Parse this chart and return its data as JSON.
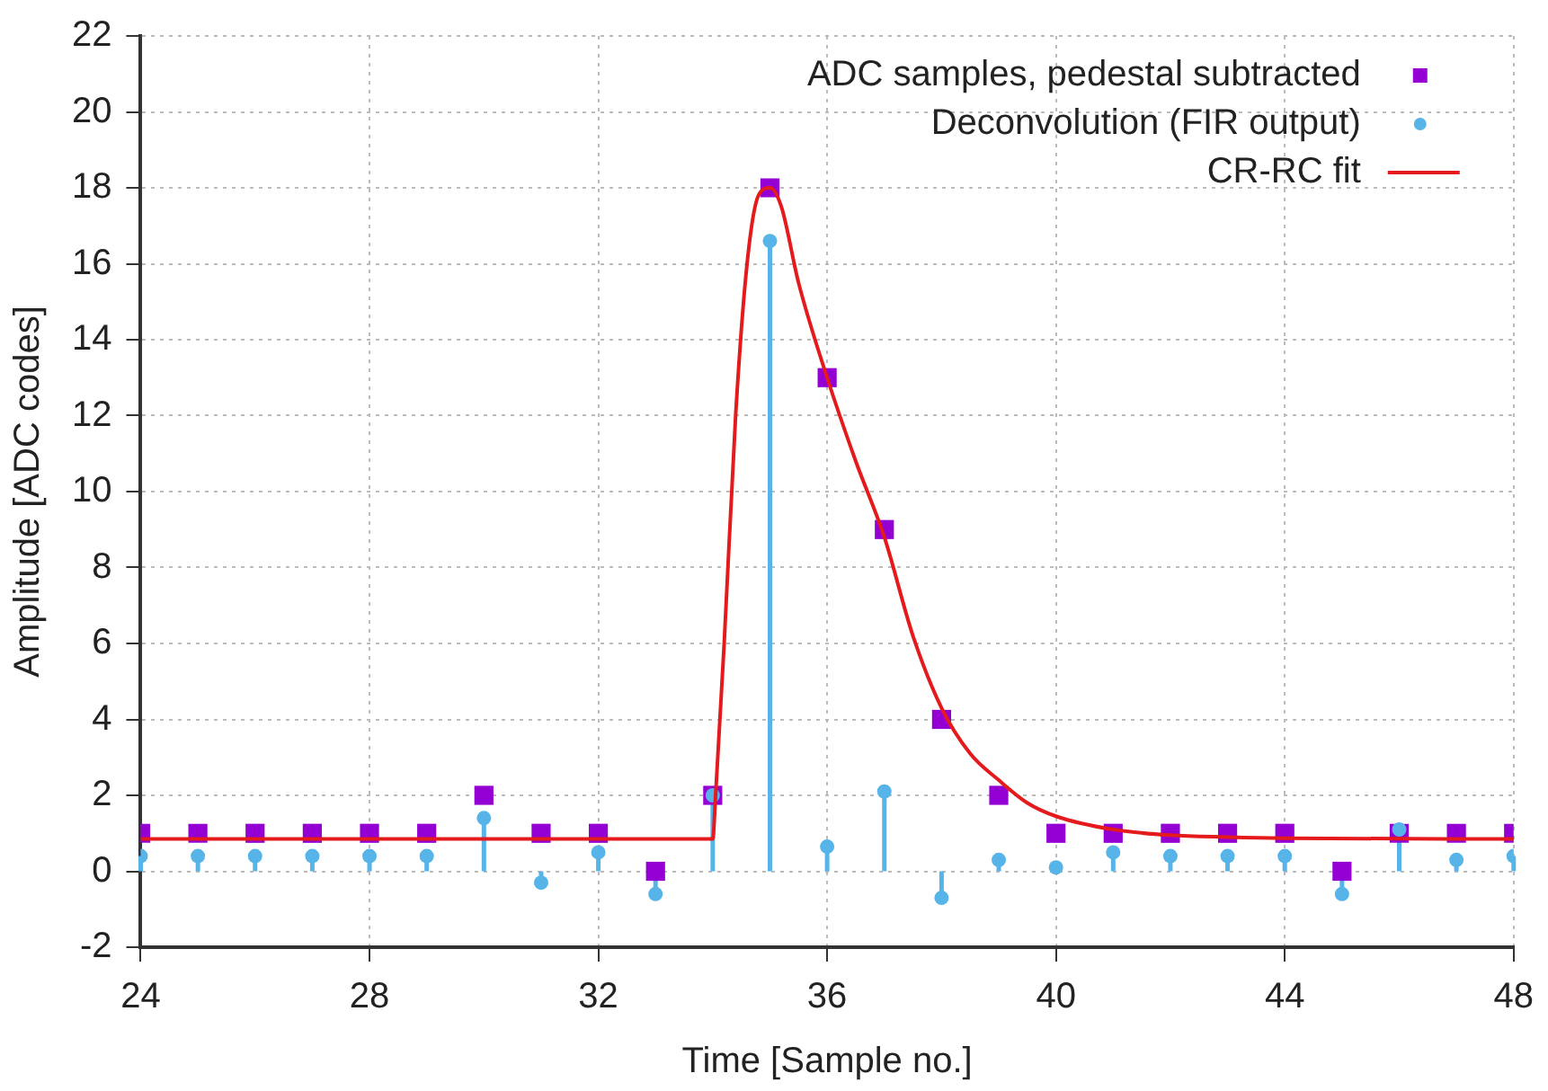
{
  "chart_data": {
    "type": "scatter",
    "xlabel": "Time [Sample no.]",
    "ylabel": "Amplitude [ADC codes]",
    "x": [
      24,
      25,
      26,
      27,
      28,
      29,
      30,
      31,
      32,
      33,
      34,
      35,
      36,
      37,
      38,
      39,
      40,
      41,
      42,
      43,
      44,
      45,
      46,
      47,
      48
    ],
    "series": [
      {
        "name": "ADC samples, pedestal subtracted",
        "type": "scatter",
        "marker": "square",
        "color": "#9400d3",
        "values": [
          1,
          1,
          1,
          1,
          1,
          1,
          2,
          1,
          1,
          0,
          2,
          18,
          13,
          9,
          4,
          2,
          1,
          1,
          1,
          1,
          1,
          0,
          1,
          1,
          1
        ]
      },
      {
        "name": "Deconvolution (FIR output)",
        "type": "lollipop",
        "marker": "circle",
        "color": "#56b4e9",
        "values": [
          0.4,
          0.4,
          0.4,
          0.4,
          0.4,
          0.4,
          1.4,
          -0.3,
          0.5,
          -0.6,
          2,
          16.6,
          0.65,
          2.1,
          -0.7,
          0.3,
          0.1,
          0.5,
          0.4,
          0.4,
          0.4,
          -0.6,
          1.1,
          0.3,
          0.4
        ]
      },
      {
        "name": "CR-RC fit",
        "type": "line",
        "marker": "none",
        "color": "#e41a1c",
        "x": [
          24,
          34,
          34.05,
          34.2,
          34.4,
          34.6,
          34.8,
          35,
          35.2,
          35.5,
          36,
          36.5,
          37,
          37.5,
          38,
          38.5,
          39,
          39.5,
          40,
          41,
          42,
          43,
          44,
          48
        ],
        "values": [
          0.85,
          0.85,
          2,
          6,
          12,
          16,
          17.8,
          18,
          17.5,
          15.5,
          13,
          10.8,
          8.8,
          6.2,
          4.3,
          3.1,
          2.4,
          1.8,
          1.45,
          1.1,
          0.95,
          0.9,
          0.87,
          0.85
        ]
      }
    ],
    "xlim": [
      24,
      48
    ],
    "xticks": [
      24,
      28,
      32,
      36,
      40,
      44,
      48
    ],
    "ylim": [
      -2,
      22
    ],
    "yticks": [
      -2,
      0,
      2,
      4,
      6,
      8,
      10,
      12,
      14,
      16,
      18,
      20,
      22
    ],
    "grid": true,
    "legend": "top right"
  }
}
